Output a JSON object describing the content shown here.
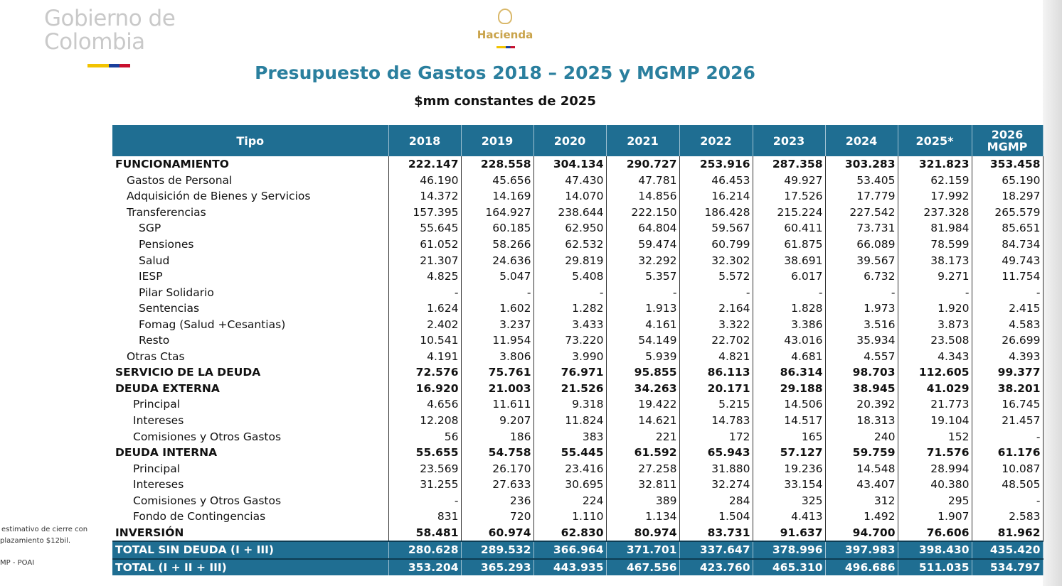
{
  "header": {
    "logo": [
      "Gobierno de",
      "Colombia"
    ],
    "ministry": "Hacienda"
  },
  "title": "Presupuesto de Gastos 2018 – 2025 y MGMP 2026",
  "subtitle": "$mm constantes de 2025",
  "notes": [
    "estimativo de cierre con",
    "plazamiento $12bil.",
    "MP - POAI"
  ],
  "table": {
    "columns": [
      "Tipo",
      "2018",
      "2019",
      "2020",
      "2021",
      "2022",
      "2023",
      "2024",
      "2025*",
      "2026 MGMP"
    ],
    "rows": [
      [
        "FUNCIONAMIENTO",
        "222.147",
        "228.558",
        "304.134",
        "290.727",
        "253.916",
        "287.358",
        "303.283",
        "321.823",
        "353.458"
      ],
      [
        "Gastos de Personal",
        "46.190",
        "45.656",
        "47.430",
        "47.781",
        "46.453",
        "49.927",
        "53.405",
        "62.159",
        "65.190"
      ],
      [
        "Adquisición de Bienes y Servicios",
        "14.372",
        "14.169",
        "14.070",
        "14.856",
        "16.214",
        "17.526",
        "17.779",
        "17.992",
        "18.297"
      ],
      [
        "Transferencias",
        "157.395",
        "164.927",
        "238.644",
        "222.150",
        "186.428",
        "215.224",
        "227.542",
        "237.328",
        "265.579"
      ],
      [
        "SGP",
        "55.645",
        "60.185",
        "62.950",
        "64.804",
        "59.567",
        "60.411",
        "73.731",
        "81.984",
        "85.651"
      ],
      [
        "Pensiones",
        "61.052",
        "58.266",
        "62.532",
        "59.474",
        "60.799",
        "61.875",
        "66.089",
        "78.599",
        "84.734"
      ],
      [
        "Salud",
        "21.307",
        "24.636",
        "29.819",
        "32.292",
        "32.302",
        "38.691",
        "39.567",
        "38.173",
        "49.743"
      ],
      [
        "IESP",
        "4.825",
        "5.047",
        "5.408",
        "5.357",
        "5.572",
        "6.017",
        "6.732",
        "9.271",
        "11.754"
      ],
      [
        "Pilar Solidario",
        "-",
        "-",
        "-",
        "-",
        "-",
        "-",
        "-",
        "-",
        "-"
      ],
      [
        "Sentencias",
        "1.624",
        "1.602",
        "1.282",
        "1.913",
        "2.164",
        "1.828",
        "1.973",
        "1.920",
        "2.415"
      ],
      [
        "Fomag (Salud +Cesantias)",
        "2.402",
        "3.237",
        "3.433",
        "4.161",
        "3.322",
        "3.386",
        "3.516",
        "3.873",
        "4.583"
      ],
      [
        "Resto",
        "10.541",
        "11.954",
        "73.220",
        "54.149",
        "22.702",
        "43.016",
        "35.934",
        "23.508",
        "26.699"
      ],
      [
        "Otras Ctas",
        "4.191",
        "3.806",
        "3.990",
        "5.939",
        "4.821",
        "4.681",
        "4.557",
        "4.343",
        "4.393"
      ],
      [
        "SERVICIO DE LA DEUDA",
        "72.576",
        "75.761",
        "76.971",
        "95.855",
        "86.113",
        "86.314",
        "98.703",
        "112.605",
        "99.377"
      ],
      [
        "DEUDA EXTERNA",
        "16.920",
        "21.003",
        "21.526",
        "34.263",
        "20.171",
        "29.188",
        "38.945",
        "41.029",
        "38.201"
      ],
      [
        "Principal",
        "4.656",
        "11.611",
        "9.318",
        "19.422",
        "5.215",
        "14.506",
        "20.392",
        "21.773",
        "16.745"
      ],
      [
        "Intereses",
        "12.208",
        "9.207",
        "11.824",
        "14.621",
        "14.783",
        "14.517",
        "18.313",
        "19.104",
        "21.457"
      ],
      [
        "Comisiones y Otros Gastos",
        "56",
        "186",
        "383",
        "221",
        "172",
        "165",
        "240",
        "152",
        "-"
      ],
      [
        "DEUDA INTERNA",
        "55.655",
        "54.758",
        "55.445",
        "61.592",
        "65.943",
        "57.127",
        "59.759",
        "71.576",
        "61.176"
      ],
      [
        "Principal",
        "23.569",
        "26.170",
        "23.416",
        "27.258",
        "31.880",
        "19.236",
        "14.548",
        "28.994",
        "10.087"
      ],
      [
        "Intereses",
        "31.255",
        "27.633",
        "30.695",
        "32.811",
        "32.274",
        "33.154",
        "43.407",
        "40.380",
        "48.505"
      ],
      [
        "Comisiones y Otros Gastos",
        "-",
        "236",
        "224",
        "389",
        "284",
        "325",
        "312",
        "295",
        "-"
      ],
      [
        "Fondo de Contingencias",
        "831",
        "720",
        "1.110",
        "1.134",
        "1.504",
        "4.413",
        "1.492",
        "1.907",
        "2.583"
      ],
      [
        "INVERSIÓN",
        "58.481",
        "60.974",
        "62.830",
        "80.974",
        "83.731",
        "91.637",
        "94.700",
        "76.606",
        "81.962"
      ],
      [
        "TOTAL SIN DEUDA (I + III)",
        "280.628",
        "289.532",
        "366.964",
        "371.701",
        "337.647",
        "378.996",
        "397.983",
        "398.430",
        "435.420"
      ],
      [
        "TOTAL  (I + II + III)",
        "353.204",
        "365.293",
        "443.935",
        "467.556",
        "423.760",
        "465.310",
        "496.686",
        "511.035",
        "534.797"
      ]
    ]
  }
}
